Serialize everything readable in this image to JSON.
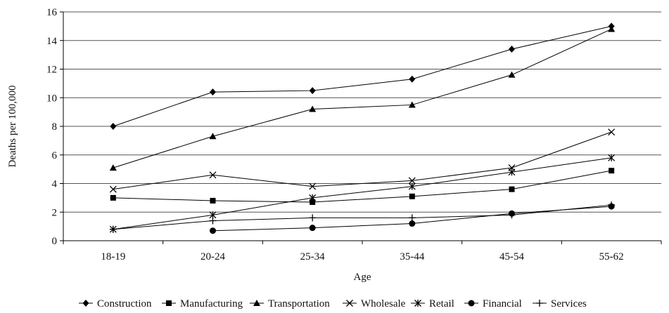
{
  "chart_data": {
    "type": "line",
    "title": "",
    "xlabel": "Age",
    "ylabel": "Deaths per 100,000",
    "ylim": [
      0,
      16
    ],
    "yticks": [
      "0",
      "2",
      "4",
      "6",
      "8",
      "10",
      "12",
      "14",
      "16"
    ],
    "categories": [
      "18-19",
      "20-24",
      "25-34",
      "35-44",
      "45-54",
      "55-62"
    ],
    "grid": "horizontal",
    "legend_position": "bottom",
    "series": [
      {
        "name": "Construction",
        "marker": "diamond",
        "values": [
          8.0,
          10.4,
          10.5,
          11.3,
          13.4,
          15.0
        ]
      },
      {
        "name": "Manufacturing",
        "marker": "square",
        "values": [
          3.0,
          2.8,
          2.7,
          3.1,
          3.6,
          4.9
        ]
      },
      {
        "name": "Transportation",
        "marker": "triangle",
        "values": [
          5.1,
          7.3,
          9.2,
          9.5,
          11.6,
          14.8
        ]
      },
      {
        "name": "Wholesale",
        "marker": "x",
        "values": [
          3.6,
          4.6,
          3.8,
          4.2,
          5.1,
          7.6
        ]
      },
      {
        "name": "Retail",
        "marker": "asterisk",
        "values": [
          0.8,
          1.8,
          3.0,
          3.8,
          4.8,
          5.8
        ]
      },
      {
        "name": "Financial",
        "marker": "circle",
        "values": [
          null,
          0.7,
          0.9,
          1.2,
          1.9,
          2.4
        ]
      },
      {
        "name": "Services",
        "marker": "plus",
        "values": [
          0.8,
          1.4,
          1.6,
          1.6,
          1.8,
          2.5
        ]
      }
    ]
  }
}
